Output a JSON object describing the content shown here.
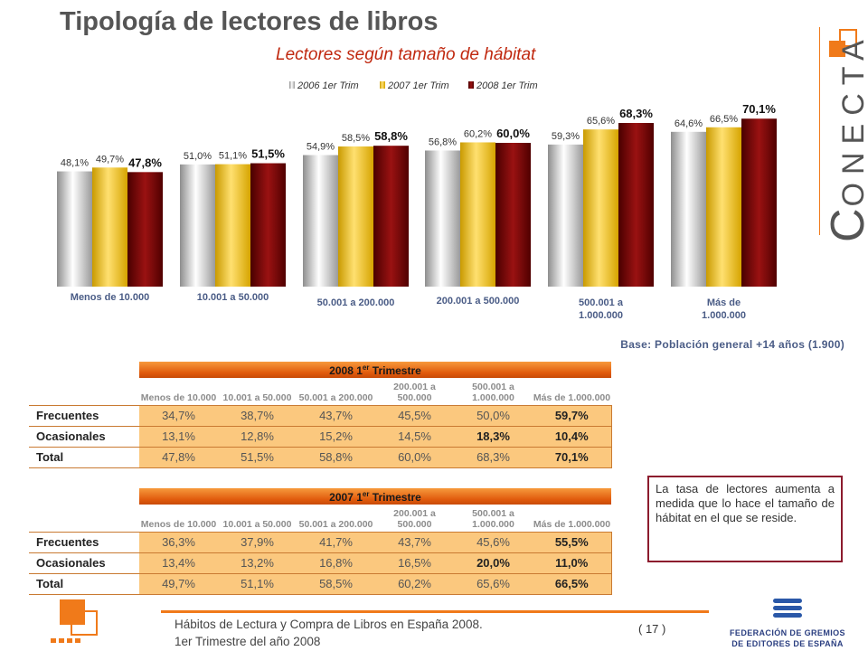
{
  "header": {
    "title": "Tipología de lectores de libros",
    "subtitle": "Lectores según tamaño de hábitat"
  },
  "colors": {
    "series_2006": "#c8c8c8",
    "series_2007": "#f2c200",
    "series_2008": "#7a0a0a",
    "accent_orange": "#f07a1a",
    "note_border": "#8c1b2d"
  },
  "chart_data": {
    "type": "bar",
    "title": "",
    "categories": [
      "Menos de 10.000",
      "10.001 a 50.000",
      "50.001 a 200.000",
      "200.001 a 500.000",
      "500.001 a 1.000.000",
      "Más de 1.000.000"
    ],
    "series": [
      {
        "name": "2006 1er Trim",
        "values": [
          48.1,
          51.0,
          54.9,
          56.8,
          59.3,
          64.6
        ],
        "labels": [
          "48,1%",
          "51,0%",
          "54,9%",
          "56,8%",
          "59,3%",
          "64,6%"
        ]
      },
      {
        "name": "2007 1er Trim",
        "values": [
          49.7,
          51.1,
          58.5,
          60.2,
          65.6,
          66.5
        ],
        "labels": [
          "49,7%",
          "51,1%",
          "58,5%",
          "60,2%",
          "65,6%",
          "66,5%"
        ]
      },
      {
        "name": "2008 1er Trim",
        "values": [
          47.8,
          51.5,
          58.8,
          60.0,
          68.3,
          70.1
        ],
        "labels": [
          "47,8%",
          "51,5%",
          "58,8%",
          "60,0%",
          "68,3%",
          "70,1%"
        ]
      }
    ],
    "legend_position": "top",
    "grid": false
  },
  "base_note": "Base: Población general +14 años (1.900)",
  "table_headers": [
    "Menos de 10.000",
    "10.001 a 50.000",
    "50.001 a 200.000",
    "200.001 a 500.000",
    "500.001 a 1.000.000",
    "Más de 1.000.000"
  ],
  "table_2008": {
    "band_title": "2008 1",
    "band_sup": "er",
    "band_rest": " Trimestre",
    "rows": [
      {
        "label": "Frecuentes",
        "values": [
          "34,7%",
          "38,7%",
          "43,7%",
          "45,5%",
          "50,0%",
          "59,7%"
        ]
      },
      {
        "label": "Ocasionales",
        "values": [
          "13,1%",
          "12,8%",
          "15,2%",
          "14,5%",
          "18,3%",
          "10,4%"
        ]
      },
      {
        "label": "Total",
        "values": [
          "47,8%",
          "51,5%",
          "58,8%",
          "60,0%",
          "68,3%",
          "70,1%"
        ]
      }
    ]
  },
  "table_2007": {
    "band_title": "2007 1",
    "band_sup": "er",
    "band_rest": " Trimestre",
    "rows": [
      {
        "label": "Frecuentes",
        "values": [
          "36,3%",
          "37,9%",
          "41,7%",
          "43,7%",
          "45,6%",
          "55,5%"
        ]
      },
      {
        "label": "Ocasionales",
        "values": [
          "13,4%",
          "13,2%",
          "16,8%",
          "16,5%",
          "20,0%",
          "11,0%"
        ]
      },
      {
        "label": "Total",
        "values": [
          "49,7%",
          "51,1%",
          "58,5%",
          "60,2%",
          "65,6%",
          "66,5%"
        ]
      }
    ]
  },
  "note_text": "La tasa de lectores aumenta a medida que lo hace el tamaño de hábitat en el que se reside.",
  "footer": {
    "line1": "Hábitos de Lectura y Compra de Libros en España 2008.",
    "line2": "1er Trimestre del año 2008",
    "page": "( 17 )",
    "federation_line1": "FEDERACIÓN DE GREMIOS",
    "federation_line2": "DE EDITORES DE ESPAÑA"
  },
  "brand": {
    "initial": "C",
    "rest": "ONECTA"
  }
}
